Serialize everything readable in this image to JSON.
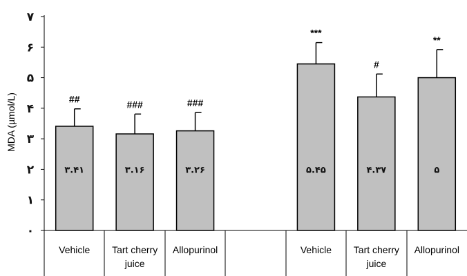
{
  "chart_data": {
    "type": "bar",
    "ylabel": "MDA (µmol/L)",
    "ylim": [
      0,
      7
    ],
    "y_tick_labels": [
      "٠",
      "١",
      "٢",
      "٣",
      "۴",
      "۵",
      "۶",
      "٧"
    ],
    "categories": [
      {
        "label": [
          "Vehicle"
        ],
        "value": 3.41,
        "value_label": "٣.۴١",
        "error": 0.57,
        "annotation": "##"
      },
      {
        "label": [
          "Tart cherry",
          "juice"
        ],
        "value": 3.16,
        "value_label": "٣.١۶",
        "error": 0.65,
        "annotation": "###"
      },
      {
        "label": [
          "Allopurinol"
        ],
        "value": 3.26,
        "value_label": "٣.٢۶",
        "error": 0.6,
        "annotation": "###"
      },
      {
        "label": [
          ""
        ],
        "value": null,
        "value_label": "",
        "error": null,
        "annotation": ""
      },
      {
        "label": [
          "Vehicle"
        ],
        "value": 5.45,
        "value_label": "۵.۴۵",
        "error": 0.7,
        "annotation": "***"
      },
      {
        "label": [
          "Tart cherry",
          "juice"
        ],
        "value": 4.37,
        "value_label": "۴.٣٧",
        "error": 0.75,
        "annotation": "#"
      },
      {
        "label": [
          "Allopurinol"
        ],
        "value": 5.0,
        "value_label": "۵",
        "error": 0.92,
        "annotation": "**"
      }
    ],
    "bar_color": "#c0c0c0",
    "grid": false,
    "legend": "none"
  }
}
